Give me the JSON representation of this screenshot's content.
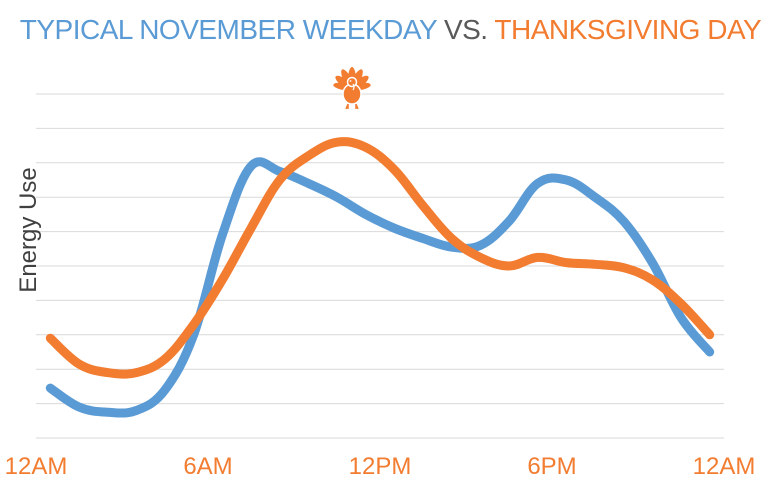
{
  "chart_data": {
    "type": "line",
    "title": {
      "part1": "TYPICAL NOVEMBER WEEKDAY",
      "part2": "VS.",
      "part3": "THANKSGIVING DAY"
    },
    "ylabel": "Energy Use",
    "xlabel": "",
    "x_tick_labels": [
      "12AM",
      "6AM",
      "12PM",
      "6PM",
      "12AM"
    ],
    "x_tick_hours": [
      0,
      6,
      12,
      18,
      24
    ],
    "xlim": [
      0,
      24
    ],
    "ylim": [
      0,
      10
    ],
    "y_gridlines": 10,
    "grid": true,
    "legend": "none (series colors keyed in title)",
    "colors": {
      "weekday": "#5b9bd5",
      "thanksgiving": "#f27c30",
      "vs": "#5a5a5a",
      "grid": "#d9d9d9"
    },
    "annotation_icon": "turkey-icon",
    "series": [
      {
        "key": "weekday",
        "color": "#5b9bd5",
        "x": [
          0.5,
          1.5,
          2.5,
          3.5,
          4.5,
          5.5,
          6.5,
          7.5,
          8.5,
          9.5,
          10.5,
          11.5,
          12.5,
          13.5,
          14.5,
          15.5,
          16.5,
          17.5,
          18.5,
          19.5,
          20.5,
          21.5,
          22.5,
          23.5
        ],
        "values": [
          1.45,
          0.9,
          0.75,
          0.8,
          1.4,
          3.0,
          5.9,
          7.9,
          7.75,
          7.4,
          7.0,
          6.5,
          6.1,
          5.8,
          5.55,
          5.6,
          6.3,
          7.4,
          7.5,
          7.0,
          6.3,
          5.1,
          3.5,
          2.5
        ]
      },
      {
        "key": "thanksgiving",
        "color": "#f27c30",
        "x": [
          0.5,
          1.5,
          2.5,
          3.5,
          4.5,
          5.5,
          6.5,
          7.5,
          8.5,
          9.5,
          10.5,
          11.5,
          12.5,
          13.5,
          14.5,
          15.5,
          16.5,
          17.5,
          18.5,
          19.5,
          20.5,
          21.5,
          22.5,
          23.5
        ],
        "values": [
          2.9,
          2.15,
          1.9,
          1.9,
          2.3,
          3.3,
          4.6,
          6.1,
          7.5,
          8.2,
          8.6,
          8.45,
          7.8,
          6.75,
          5.8,
          5.25,
          5.0,
          5.25,
          5.1,
          5.05,
          4.95,
          4.6,
          3.9,
          3.0
        ]
      }
    ]
  }
}
